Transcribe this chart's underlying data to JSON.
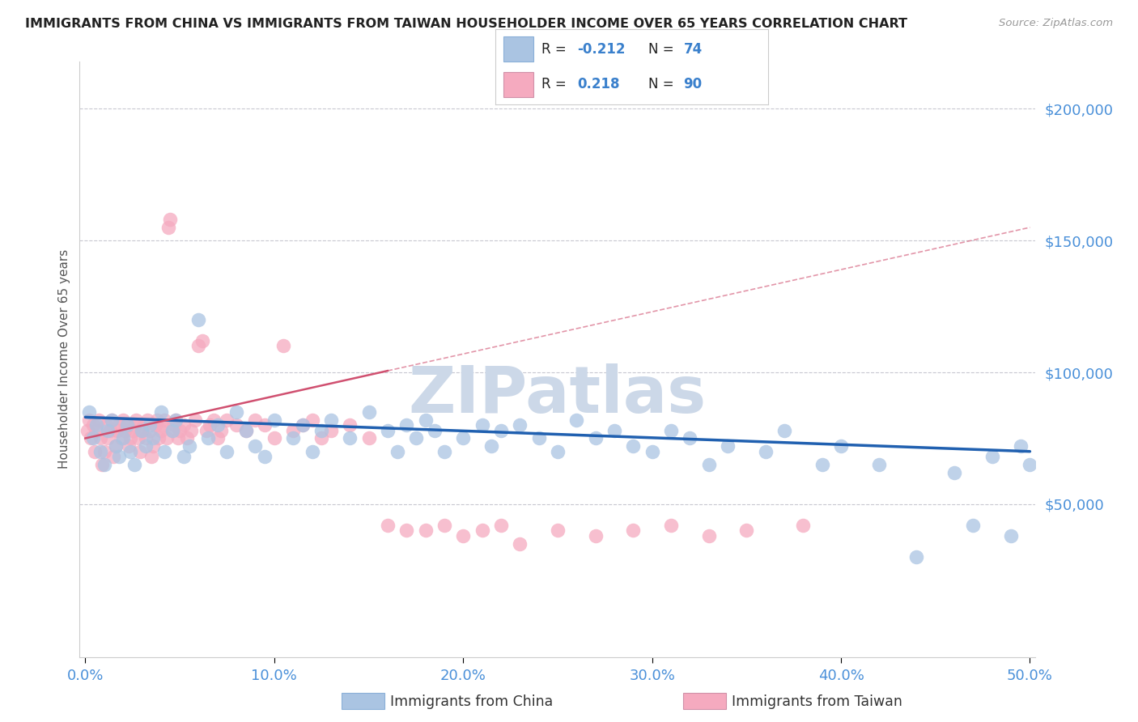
{
  "title": "IMMIGRANTS FROM CHINA VS IMMIGRANTS FROM TAIWAN HOUSEHOLDER INCOME OVER 65 YEARS CORRELATION CHART",
  "source": "Source: ZipAtlas.com",
  "ylabel": "Householder Income Over 65 years",
  "xlim": [
    -0.003,
    0.503
  ],
  "ylim": [
    -8000,
    218000
  ],
  "china_color": "#aac4e2",
  "taiwan_color": "#f5aabf",
  "china_line_color": "#2060b0",
  "taiwan_line_color": "#d05070",
  "legend_china_R": "-0.212",
  "legend_china_N": "74",
  "legend_taiwan_R": "0.218",
  "legend_taiwan_N": "90",
  "grid_color": "#c8c8d0",
  "background_color": "#ffffff",
  "watermark": "ZIPatlas",
  "watermark_color": "#ccd8e8",
  "china_x": [
    0.002,
    0.004,
    0.006,
    0.008,
    0.01,
    0.012,
    0.014,
    0.016,
    0.018,
    0.02,
    0.022,
    0.024,
    0.026,
    0.03,
    0.032,
    0.034,
    0.036,
    0.04,
    0.042,
    0.046,
    0.048,
    0.052,
    0.055,
    0.06,
    0.065,
    0.07,
    0.075,
    0.08,
    0.085,
    0.09,
    0.095,
    0.1,
    0.11,
    0.115,
    0.12,
    0.125,
    0.13,
    0.14,
    0.15,
    0.16,
    0.165,
    0.17,
    0.175,
    0.18,
    0.185,
    0.19,
    0.2,
    0.21,
    0.215,
    0.22,
    0.23,
    0.24,
    0.25,
    0.26,
    0.27,
    0.28,
    0.29,
    0.3,
    0.31,
    0.32,
    0.33,
    0.34,
    0.36,
    0.37,
    0.39,
    0.4,
    0.42,
    0.44,
    0.46,
    0.47,
    0.48,
    0.49,
    0.495,
    0.5
  ],
  "china_y": [
    85000,
    75000,
    80000,
    70000,
    65000,
    78000,
    82000,
    72000,
    68000,
    75000,
    80000,
    70000,
    65000,
    78000,
    72000,
    80000,
    75000,
    85000,
    70000,
    78000,
    82000,
    68000,
    72000,
    120000,
    75000,
    80000,
    70000,
    85000,
    78000,
    72000,
    68000,
    82000,
    75000,
    80000,
    70000,
    78000,
    82000,
    75000,
    85000,
    78000,
    70000,
    80000,
    75000,
    82000,
    78000,
    70000,
    75000,
    80000,
    72000,
    78000,
    80000,
    75000,
    70000,
    82000,
    75000,
    78000,
    72000,
    70000,
    78000,
    75000,
    65000,
    72000,
    70000,
    78000,
    65000,
    72000,
    65000,
    30000,
    62000,
    42000,
    68000,
    38000,
    72000,
    65000
  ],
  "taiwan_x": [
    0.001,
    0.002,
    0.003,
    0.004,
    0.005,
    0.006,
    0.007,
    0.008,
    0.009,
    0.01,
    0.011,
    0.012,
    0.013,
    0.014,
    0.015,
    0.016,
    0.017,
    0.018,
    0.019,
    0.02,
    0.021,
    0.022,
    0.023,
    0.024,
    0.025,
    0.026,
    0.027,
    0.028,
    0.029,
    0.03,
    0.031,
    0.032,
    0.033,
    0.034,
    0.035,
    0.036,
    0.037,
    0.038,
    0.039,
    0.04,
    0.041,
    0.042,
    0.043,
    0.044,
    0.045,
    0.046,
    0.047,
    0.048,
    0.049,
    0.05,
    0.052,
    0.054,
    0.056,
    0.058,
    0.06,
    0.062,
    0.064,
    0.066,
    0.068,
    0.07,
    0.072,
    0.075,
    0.08,
    0.085,
    0.09,
    0.095,
    0.1,
    0.105,
    0.11,
    0.115,
    0.12,
    0.125,
    0.13,
    0.14,
    0.15,
    0.16,
    0.17,
    0.18,
    0.19,
    0.2,
    0.21,
    0.22,
    0.23,
    0.25,
    0.27,
    0.29,
    0.31,
    0.33,
    0.35,
    0.38
  ],
  "taiwan_y": [
    78000,
    82000,
    75000,
    80000,
    70000,
    78000,
    82000,
    75000,
    65000,
    70000,
    80000,
    75000,
    78000,
    82000,
    68000,
    72000,
    78000,
    80000,
    75000,
    82000,
    78000,
    80000,
    72000,
    75000,
    78000,
    80000,
    82000,
    75000,
    70000,
    78000,
    80000,
    75000,
    82000,
    78000,
    68000,
    72000,
    80000,
    82000,
    75000,
    78000,
    80000,
    82000,
    75000,
    155000,
    158000,
    78000,
    80000,
    82000,
    75000,
    78000,
    80000,
    75000,
    78000,
    82000,
    110000,
    112000,
    78000,
    80000,
    82000,
    75000,
    78000,
    82000,
    80000,
    78000,
    82000,
    80000,
    75000,
    110000,
    78000,
    80000,
    82000,
    75000,
    78000,
    80000,
    75000,
    42000,
    40000,
    40000,
    42000,
    38000,
    40000,
    42000,
    35000,
    40000,
    38000,
    40000,
    42000,
    38000,
    40000,
    42000
  ]
}
